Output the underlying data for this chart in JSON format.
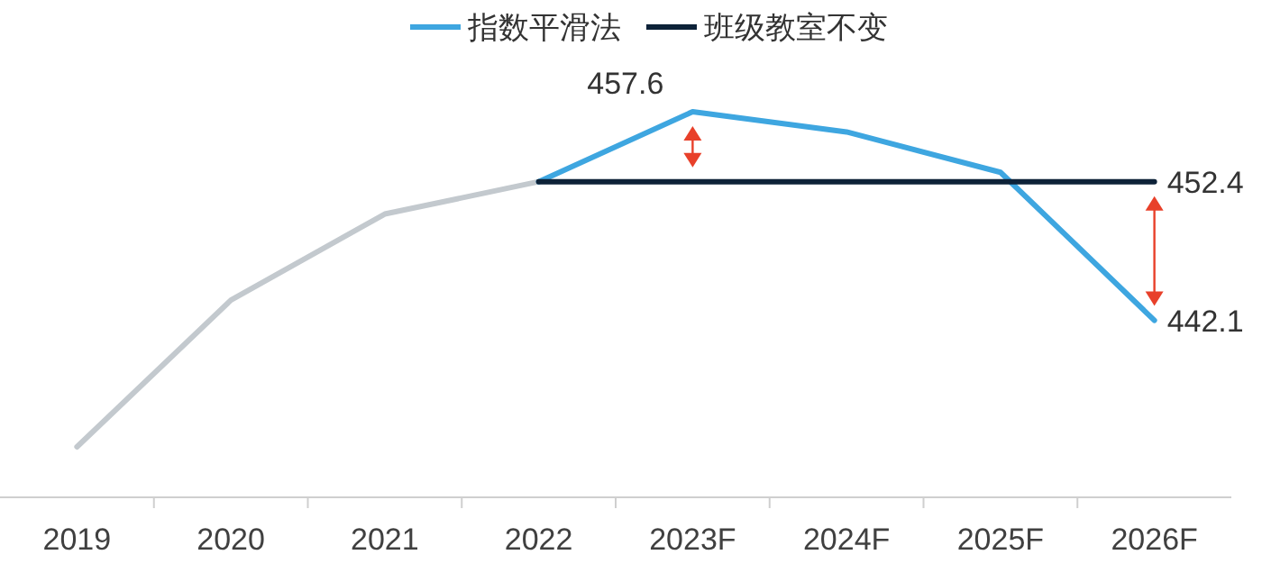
{
  "chart_data": {
    "type": "line",
    "categories": [
      "2019",
      "2020",
      "2021",
      "2022",
      "2023F",
      "2024F",
      "2025F",
      "2026F"
    ],
    "series": [
      {
        "color": "#c3c9ce",
        "values": [
          432.7,
          443.6,
          450.0,
          452.4,
          null,
          null,
          null,
          null
        ]
      },
      {
        "name": "指数平滑法",
        "color": "#3ea6e0",
        "values": [
          null,
          null,
          null,
          452.4,
          457.6,
          456.1,
          453.1,
          442.1
        ],
        "value_labels": [
          null,
          null,
          null,
          null,
          "457.6",
          null,
          null,
          "442.1"
        ]
      },
      {
        "name": "班级教室不变",
        "color": "#0d2238",
        "values": [
          null,
          null,
          null,
          452.4,
          452.4,
          452.4,
          452.4,
          452.4
        ],
        "value_labels": [
          null,
          null,
          null,
          null,
          null,
          null,
          null,
          "452.4"
        ]
      }
    ],
    "legend": "top",
    "marker": "none",
    "line_style": "solid"
  }
}
